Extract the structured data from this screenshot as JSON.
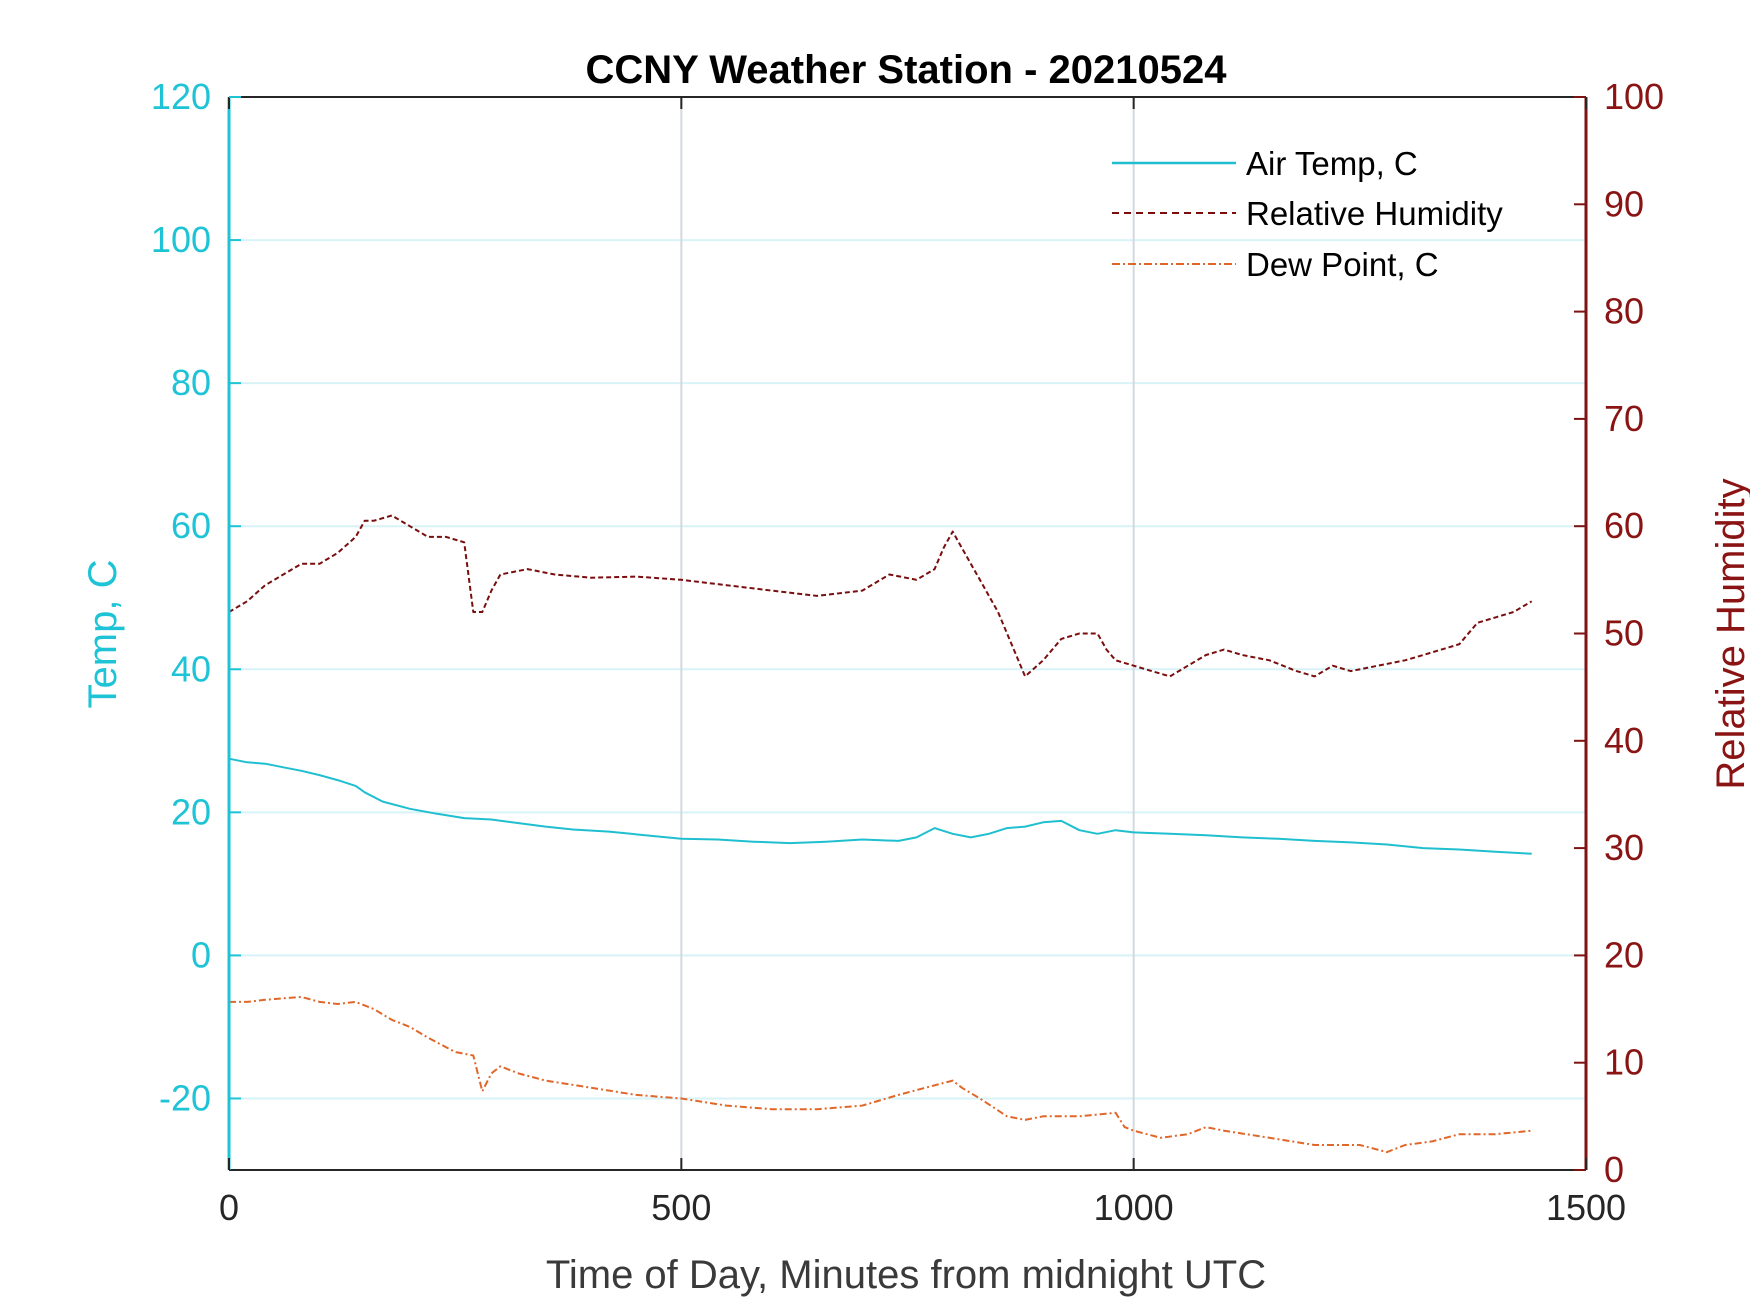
{
  "chart_data": {
    "type": "line",
    "title": "CCNY Weather Station - 20210524",
    "xlabel": "Time of Day, Minutes from midnight UTC",
    "ylabel_left": "Temp, C",
    "ylabel_right": "Relative Humidity",
    "xlim": [
      0,
      1500
    ],
    "ylim_left": [
      -30,
      120
    ],
    "ylim_right": [
      0,
      100
    ],
    "x_ticks": [
      "0",
      "500",
      "1000",
      "1500"
    ],
    "y_left_ticks": [
      "-20",
      "0",
      "20",
      "40",
      "60",
      "80",
      "100",
      "120"
    ],
    "y_right_ticks": [
      "0",
      "10",
      "20",
      "30",
      "40",
      "50",
      "60",
      "70",
      "80",
      "90",
      "100"
    ],
    "grid": "on (light horizontal lines on left-axis ticks, vertical lines on x ticks)",
    "legend_position": "top-right",
    "colors": {
      "left_axis": "#1fc3d6",
      "right_axis": "#7f1212",
      "air_temp": "#1fbfd0",
      "humidity": "#7a0e0e",
      "dew_point": "#e0672a"
    },
    "series": [
      {
        "name": "Air Temp, C",
        "axis": "left",
        "style": "solid",
        "x": [
          0,
          20,
          40,
          60,
          80,
          100,
          120,
          140,
          150,
          170,
          200,
          230,
          260,
          290,
          320,
          350,
          380,
          420,
          460,
          500,
          540,
          580,
          620,
          660,
          700,
          740,
          760,
          780,
          800,
          820,
          840,
          860,
          880,
          900,
          920,
          940,
          960,
          980,
          1000,
          1040,
          1080,
          1120,
          1160,
          1200,
          1240,
          1280,
          1320,
          1360,
          1400,
          1440
        ],
        "y": [
          27.5,
          27,
          26.8,
          26.3,
          25.8,
          25.2,
          24.5,
          23.7,
          22.8,
          21.5,
          20.5,
          19.8,
          19.2,
          19,
          18.5,
          18,
          17.6,
          17.3,
          16.8,
          16.3,
          16.2,
          15.9,
          15.7,
          15.9,
          16.2,
          16.0,
          16.5,
          17.8,
          17.0,
          16.5,
          17.0,
          17.8,
          18.0,
          18.6,
          18.8,
          17.5,
          17.0,
          17.5,
          17.2,
          17.0,
          16.8,
          16.5,
          16.3,
          16.0,
          15.8,
          15.5,
          15.0,
          14.8,
          14.5,
          14.2
        ]
      },
      {
        "name": "Relative Humidity",
        "axis": "right",
        "style": "dashed",
        "x": [
          0,
          20,
          40,
          60,
          80,
          100,
          120,
          140,
          150,
          160,
          180,
          200,
          220,
          240,
          260,
          270,
          280,
          290,
          300,
          330,
          360,
          400,
          450,
          500,
          550,
          600,
          650,
          700,
          730,
          760,
          780,
          790,
          800,
          820,
          830,
          850,
          870,
          880,
          900,
          920,
          940,
          960,
          970,
          980,
          1000,
          1020,
          1040,
          1060,
          1080,
          1100,
          1120,
          1150,
          1180,
          1200,
          1220,
          1240,
          1270,
          1300,
          1320,
          1340,
          1360,
          1380,
          1400,
          1420,
          1440
        ],
        "y": [
          52,
          53,
          54.5,
          55.5,
          56.5,
          56.5,
          57.5,
          59,
          60.5,
          60.5,
          61,
          60,
          59,
          59,
          58.5,
          52,
          52,
          54,
          55.5,
          56,
          55.5,
          55.2,
          55.3,
          55,
          54.5,
          54,
          53.5,
          54,
          55.5,
          55,
          56,
          58,
          59.5,
          56.5,
          55,
          52,
          48,
          46,
          47.5,
          49.5,
          50,
          50,
          48.5,
          47.5,
          47,
          46.5,
          46,
          47,
          48,
          48.5,
          48,
          47.5,
          46.5,
          46,
          47,
          46.5,
          47,
          47.5,
          48,
          48.5,
          49,
          51,
          51.5,
          52,
          53
        ]
      },
      {
        "name": "Dew Point, C",
        "axis": "left",
        "style": "dash-dot",
        "x": [
          0,
          20,
          40,
          60,
          80,
          100,
          120,
          140,
          160,
          180,
          200,
          220,
          250,
          270,
          280,
          290,
          300,
          320,
          350,
          400,
          450,
          500,
          550,
          600,
          650,
          700,
          740,
          770,
          800,
          810,
          830,
          860,
          880,
          900,
          940,
          980,
          990,
          1000,
          1030,
          1060,
          1080,
          1100,
          1150,
          1200,
          1250,
          1280,
          1300,
          1330,
          1360,
          1400,
          1440
        ],
        "y": [
          -6.5,
          -6.5,
          -6.2,
          -6,
          -5.8,
          -6.5,
          -6.8,
          -6.5,
          -7.5,
          -9,
          -10,
          -11.5,
          -13.5,
          -14,
          -19,
          -16.5,
          -15.5,
          -16.5,
          -17.5,
          -18.5,
          -19.5,
          -20,
          -21,
          -21.5,
          -21.5,
          -21,
          -19.5,
          -18.5,
          -17.5,
          -18.5,
          -20,
          -22.5,
          -23,
          -22.5,
          -22.5,
          -22,
          -24,
          -24.5,
          -25.5,
          -25,
          -24,
          -24.5,
          -25.5,
          -26.5,
          -26.5,
          -27.5,
          -26.5,
          -26,
          -25,
          -25,
          -24.5
        ]
      }
    ]
  }
}
